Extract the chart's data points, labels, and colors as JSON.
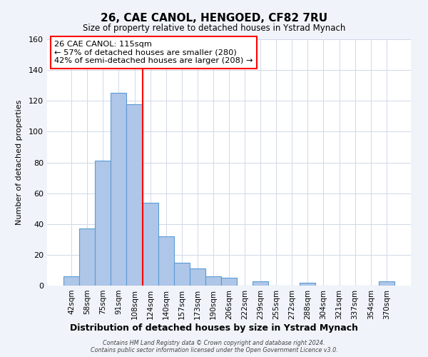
{
  "title": "26, CAE CANOL, HENGOED, CF82 7RU",
  "subtitle": "Size of property relative to detached houses in Ystrad Mynach",
  "xlabel": "Distribution of detached houses by size in Ystrad Mynach",
  "ylabel": "Number of detached properties",
  "bar_labels": [
    "42sqm",
    "58sqm",
    "75sqm",
    "91sqm",
    "108sqm",
    "124sqm",
    "140sqm",
    "157sqm",
    "173sqm",
    "190sqm",
    "206sqm",
    "222sqm",
    "239sqm",
    "255sqm",
    "272sqm",
    "288sqm",
    "304sqm",
    "321sqm",
    "337sqm",
    "354sqm",
    "370sqm"
  ],
  "bar_values": [
    6,
    37,
    81,
    125,
    118,
    54,
    32,
    15,
    11,
    6,
    5,
    0,
    3,
    0,
    0,
    2,
    0,
    0,
    0,
    0,
    3
  ],
  "bar_color": "#aec6e8",
  "bar_edge_color": "#5b9bd5",
  "vline_x_index": 4.5,
  "vline_color": "red",
  "ylim": [
    0,
    160
  ],
  "yticks": [
    0,
    20,
    40,
    60,
    80,
    100,
    120,
    140,
    160
  ],
  "annotation_title": "26 CAE CANOL: 115sqm",
  "annotation_line1": "← 57% of detached houses are smaller (280)",
  "annotation_line2": "42% of semi-detached houses are larger (208) →",
  "footer_line1": "Contains HM Land Registry data © Crown copyright and database right 2024.",
  "footer_line2": "Contains public sector information licensed under the Open Government Licence v3.0.",
  "background_color": "#f0f4fa",
  "plot_background_color": "#ffffff",
  "grid_color": "#d0d8e8"
}
